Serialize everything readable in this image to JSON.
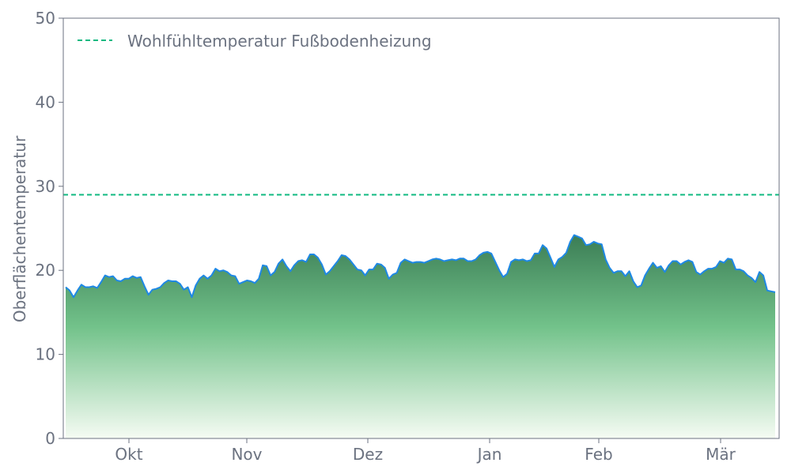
{
  "chart_data": {
    "type": "area",
    "xlabel": "",
    "ylabel": "Oberflächentemperatur",
    "ylim": [
      0,
      50
    ],
    "yticks": [
      "0",
      "10",
      "20",
      "30",
      "40",
      "50"
    ],
    "xticks": [
      "Okt",
      "Nov",
      "Dez",
      "Jan",
      "Feb",
      "Mär"
    ],
    "grid": false,
    "legend": "top-left",
    "reference_line": {
      "name": "Wohlfühltemperatur Fußbodenheizung",
      "value": 29,
      "color": "#10b981"
    },
    "series": [
      {
        "color": "#1e88e5",
        "fill_top": "#3b7d55",
        "fill_bottom": "#f5fbf3",
        "values": [
          18.0,
          17.6,
          16.8,
          17.6,
          18.3,
          18.0,
          18.0,
          18.1,
          17.9,
          18.6,
          19.4,
          19.2,
          19.3,
          18.8,
          18.7,
          19.0,
          19.0,
          19.3,
          19.1,
          19.2,
          18.1,
          17.1,
          17.7,
          17.8,
          18.0,
          18.5,
          18.8,
          18.7,
          18.7,
          18.4,
          17.7,
          18.0,
          16.8,
          18.2,
          19.0,
          19.4,
          19.0,
          19.4,
          20.2,
          19.9,
          20.0,
          19.8,
          19.4,
          19.3,
          18.4,
          18.6,
          18.8,
          18.7,
          18.5,
          19.0,
          20.6,
          20.5,
          19.4,
          19.8,
          20.8,
          21.3,
          20.5,
          19.9,
          20.6,
          21.1,
          21.2,
          21.0,
          21.9,
          21.9,
          21.5,
          20.7,
          19.5,
          19.9,
          20.5,
          21.1,
          21.8,
          21.7,
          21.3,
          20.7,
          20.1,
          20.0,
          19.4,
          20.1,
          20.1,
          20.8,
          20.7,
          20.3,
          19.0,
          19.5,
          19.7,
          20.9,
          21.3,
          21.1,
          20.9,
          21.0,
          21.0,
          20.9,
          21.1,
          21.3,
          21.4,
          21.3,
          21.1,
          21.2,
          21.3,
          21.2,
          21.4,
          21.4,
          21.1,
          21.1,
          21.3,
          21.8,
          22.1,
          22.2,
          22.0,
          21.0,
          20.0,
          19.2,
          19.6,
          21.0,
          21.3,
          21.2,
          21.3,
          21.1,
          21.2,
          22.0,
          22.0,
          23.0,
          22.6,
          21.5,
          20.4,
          21.3,
          21.6,
          22.1,
          23.4,
          24.2,
          24.0,
          23.8,
          23.0,
          23.1,
          23.4,
          23.2,
          23.1,
          21.3,
          20.3,
          19.7,
          19.9,
          19.9,
          19.3,
          19.9,
          18.7,
          18.0,
          18.2,
          19.4,
          20.2,
          20.9,
          20.3,
          20.5,
          19.8,
          20.6,
          21.1,
          21.1,
          20.7,
          21.0,
          21.2,
          21.0,
          19.8,
          19.5,
          19.9,
          20.2,
          20.2,
          20.4,
          21.1,
          20.9,
          21.4,
          21.3,
          20.1,
          20.1,
          19.9,
          19.4,
          19.1,
          18.6,
          19.8,
          19.4,
          17.6,
          17.5,
          17.4
        ]
      }
    ]
  }
}
